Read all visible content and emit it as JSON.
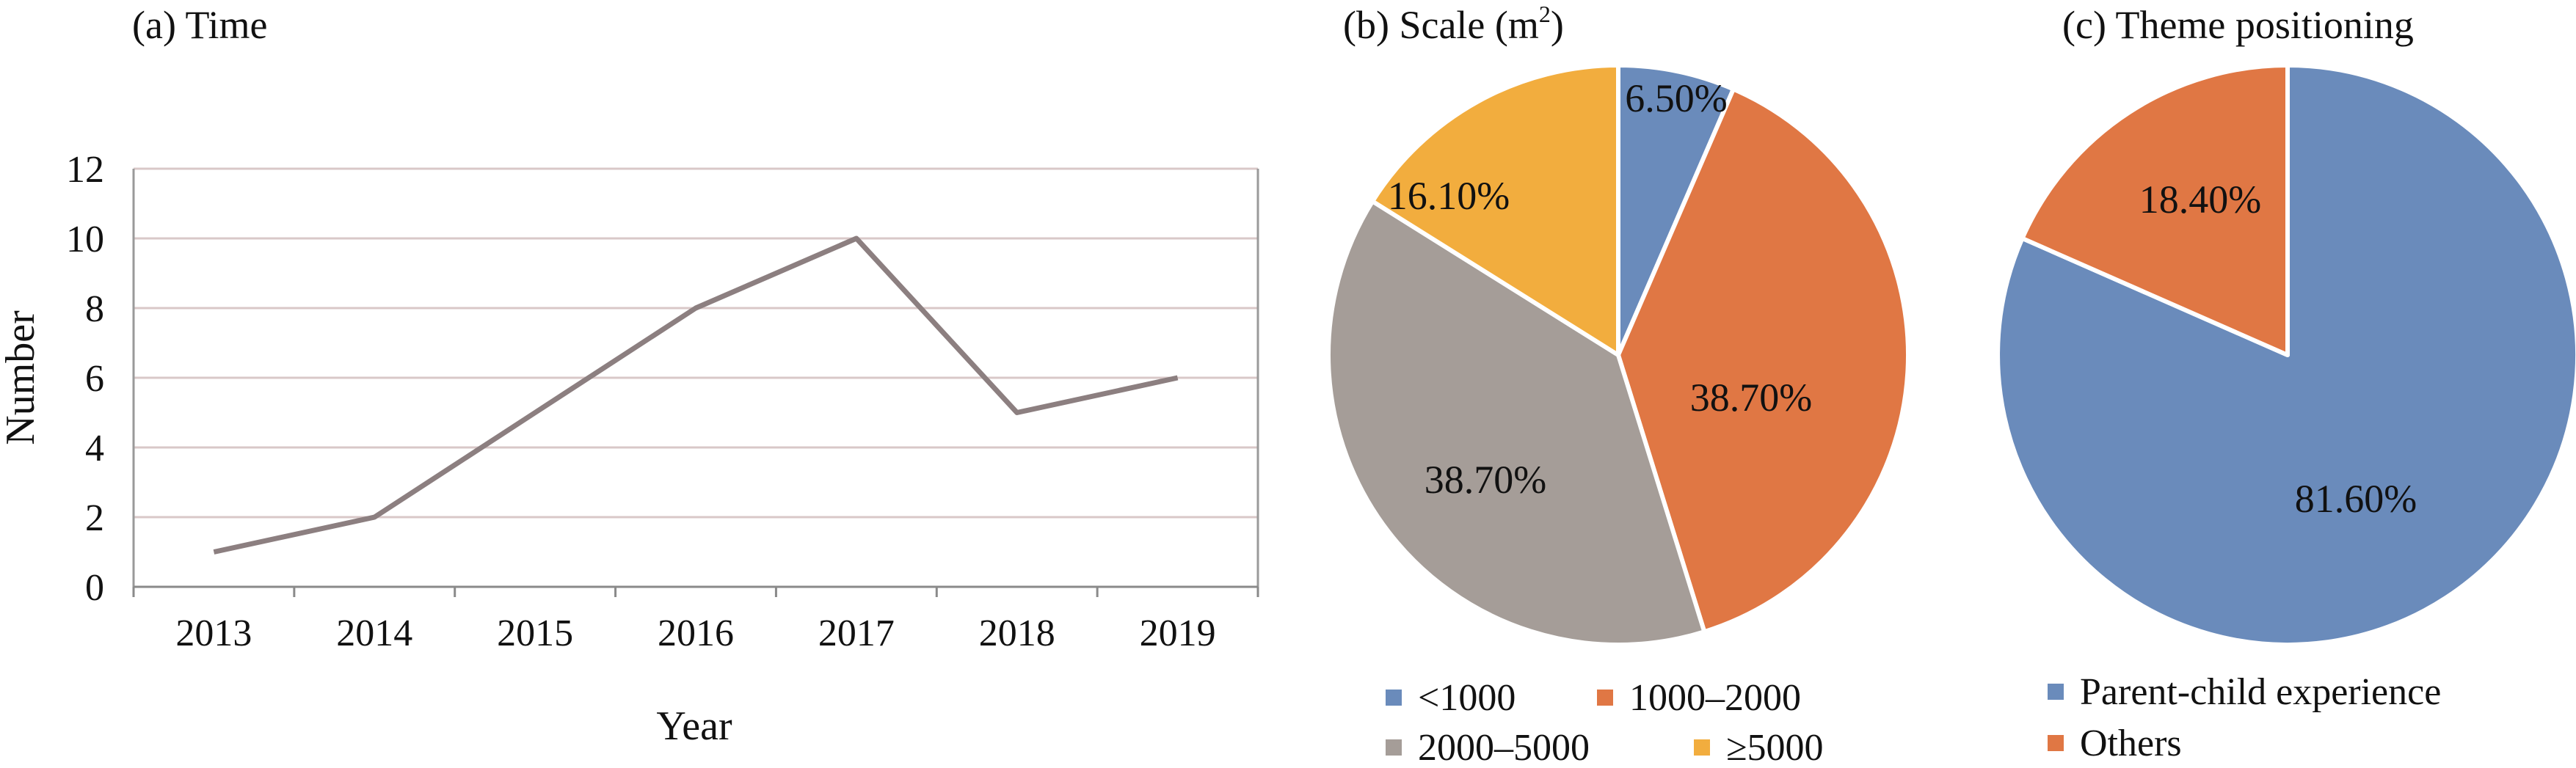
{
  "chart_data": [
    {
      "type": "line",
      "title": "(a) Time",
      "xlabel": "Year",
      "ylabel": "Number",
      "ylim": [
        0,
        12
      ],
      "yticks": [
        0,
        2,
        4,
        6,
        8,
        10,
        12
      ],
      "grid": true,
      "categories": [
        "2013",
        "2014",
        "2015",
        "2016",
        "2017",
        "2018",
        "2019"
      ],
      "values": [
        1,
        2,
        5,
        8,
        10,
        5,
        6
      ],
      "color": "#8c7f80"
    },
    {
      "type": "pie",
      "title": "(b) Scale (m",
      "title_sup": "2",
      "title_suffix": ")",
      "legend_position": "bottom",
      "slices": [
        {
          "label": "<1000",
          "value": 6.5,
          "text": "6.50%",
          "color": "#6a8bbb"
        },
        {
          "label": "1000–2000",
          "value": 38.7,
          "text": "38.70%",
          "color": "#e07744"
        },
        {
          "label": "2000–5000",
          "value": 38.7,
          "text": "38.70%",
          "color": "#a59d98"
        },
        {
          "label": "≥5000",
          "value": 16.1,
          "text": "16.10%",
          "color": "#f2ad3e"
        }
      ]
    },
    {
      "type": "pie",
      "title": "(c) Theme positioning",
      "legend_position": "bottom",
      "slices": [
        {
          "label": "Parent-child experience",
          "value": 81.6,
          "text": "81.60%",
          "color": "#6a8bbb"
        },
        {
          "label": "Others",
          "value": 18.4,
          "text": "18.40%",
          "color": "#e07744"
        }
      ]
    }
  ]
}
